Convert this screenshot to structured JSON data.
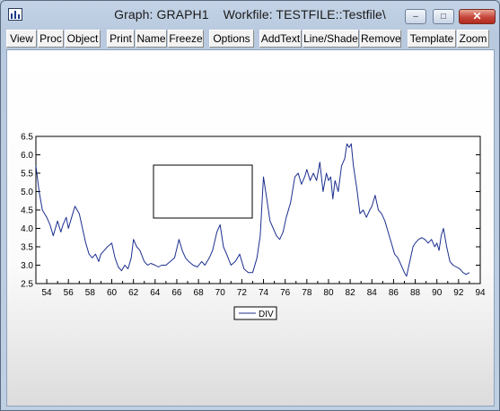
{
  "window": {
    "title": "Graph: GRAPH1    Workfile: TESTFILE::Testfile\\",
    "minimize_glyph": "–",
    "maximize_glyph": "□",
    "close_glyph": "✕"
  },
  "toolbar": {
    "buttons": [
      "View",
      "Proc",
      "Object",
      "Print",
      "Name",
      "Freeze",
      "Options",
      "AddText",
      "Line/Shade",
      "Remove",
      "Template",
      "Zoom"
    ]
  },
  "chart_data": {
    "type": "line",
    "title": "",
    "xlabel": "",
    "ylabel": "",
    "xlim": [
      1953,
      1994
    ],
    "ylim": [
      2.5,
      6.5
    ],
    "x_ticks": [
      "54",
      "56",
      "58",
      "60",
      "62",
      "64",
      "66",
      "68",
      "70",
      "72",
      "74",
      "76",
      "78",
      "80",
      "82",
      "84",
      "86",
      "88",
      "90",
      "92",
      "94"
    ],
    "y_ticks": [
      "6.5",
      "6.0",
      "5.5",
      "5.0",
      "4.5",
      "4.0",
      "3.5",
      "3.0",
      "2.5"
    ],
    "grid": false,
    "legend": "bottom-center",
    "series": [
      {
        "name": "DIV",
        "color": "#1c2f8f",
        "x": [
          1953.0,
          1953.3,
          1953.6,
          1954.0,
          1954.3,
          1954.6,
          1955.0,
          1955.3,
          1955.5,
          1955.8,
          1956.0,
          1956.3,
          1956.6,
          1957.0,
          1957.3,
          1957.6,
          1957.9,
          1958.2,
          1958.5,
          1958.8,
          1959.0,
          1959.3,
          1959.6,
          1960.0,
          1960.3,
          1960.6,
          1960.9,
          1961.2,
          1961.5,
          1961.8,
          1962.0,
          1962.3,
          1962.6,
          1963.0,
          1963.3,
          1963.6,
          1964.0,
          1964.3,
          1964.6,
          1965.0,
          1965.4,
          1965.8,
          1966.2,
          1966.5,
          1966.8,
          1967.1,
          1967.5,
          1967.9,
          1968.3,
          1968.6,
          1969.0,
          1969.3,
          1969.7,
          1970.0,
          1970.3,
          1970.6,
          1971.0,
          1971.4,
          1971.8,
          1972.2,
          1972.6,
          1973.0,
          1973.4,
          1973.7,
          1974.0,
          1974.3,
          1974.6,
          1974.9,
          1975.2,
          1975.5,
          1975.8,
          1976.1,
          1976.5,
          1976.9,
          1977.2,
          1977.5,
          1977.8,
          1978.0,
          1978.3,
          1978.6,
          1978.9,
          1979.2,
          1979.5,
          1979.8,
          1980.0,
          1980.2,
          1980.4,
          1980.6,
          1980.9,
          1981.2,
          1981.5,
          1981.7,
          1981.9,
          1982.1,
          1982.3,
          1982.6,
          1982.9,
          1983.2,
          1983.5,
          1983.8,
          1984.0,
          1984.3,
          1984.6,
          1984.9,
          1985.2,
          1985.5,
          1985.8,
          1986.1,
          1986.4,
          1986.7,
          1987.0,
          1987.2,
          1987.5,
          1987.8,
          1988.0,
          1988.3,
          1988.6,
          1988.9,
          1989.2,
          1989.5,
          1989.8,
          1990.0,
          1990.2,
          1990.4,
          1990.6,
          1990.9,
          1991.2,
          1991.5,
          1991.8,
          1992.1,
          1992.4,
          1992.7,
          1993.0
        ],
        "values": [
          5.7,
          5.0,
          4.5,
          4.3,
          4.1,
          3.8,
          4.2,
          3.9,
          4.1,
          4.3,
          4.0,
          4.3,
          4.6,
          4.4,
          4.0,
          3.6,
          3.3,
          3.2,
          3.3,
          3.1,
          3.3,
          3.4,
          3.5,
          3.6,
          3.2,
          2.95,
          2.85,
          3.0,
          2.9,
          3.2,
          3.7,
          3.5,
          3.4,
          3.1,
          3.0,
          3.05,
          3.0,
          2.95,
          3.0,
          3.0,
          3.1,
          3.2,
          3.7,
          3.4,
          3.2,
          3.1,
          3.0,
          2.95,
          3.1,
          3.0,
          3.2,
          3.4,
          3.9,
          4.1,
          3.5,
          3.3,
          3.0,
          3.1,
          3.3,
          2.9,
          2.8,
          2.8,
          3.2,
          3.8,
          5.4,
          4.8,
          4.2,
          4.0,
          3.8,
          3.7,
          3.9,
          4.3,
          4.7,
          5.4,
          5.5,
          5.2,
          5.4,
          5.6,
          5.3,
          5.5,
          5.3,
          5.8,
          5.0,
          5.5,
          5.3,
          5.4,
          4.8,
          5.3,
          5.0,
          5.7,
          5.9,
          6.3,
          6.2,
          6.3,
          5.7,
          5.1,
          4.4,
          4.5,
          4.3,
          4.5,
          4.6,
          4.9,
          4.5,
          4.4,
          4.2,
          3.9,
          3.6,
          3.3,
          3.2,
          3.0,
          2.8,
          2.7,
          3.1,
          3.5,
          3.6,
          3.7,
          3.75,
          3.7,
          3.6,
          3.7,
          3.5,
          3.6,
          3.4,
          3.8,
          4.0,
          3.5,
          3.1,
          3.0,
          2.95,
          2.9,
          2.8,
          2.75,
          2.8
        ]
      }
    ]
  }
}
